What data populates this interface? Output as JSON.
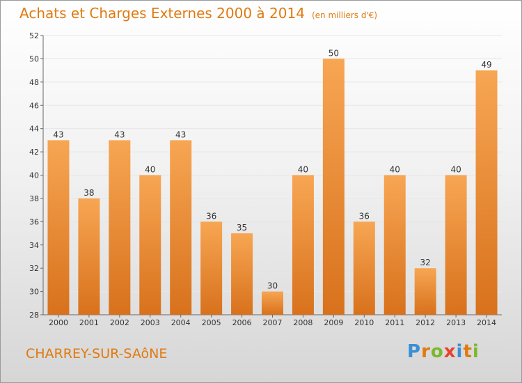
{
  "header": {
    "title": "Achats et Charges Externes 2000 à 2014",
    "unit": "(en milliers d'€)"
  },
  "footer": {
    "commune": "CHARREY-SUR-SAôNE",
    "logo_letters": [
      "P",
      "r",
      "o",
      "x",
      "i",
      "t",
      "i"
    ],
    "logo_colors": [
      "#3a8fd6",
      "#e07a10",
      "#7cb82f",
      "#e8432e",
      "#3a8fd6",
      "#e07a10",
      "#7cb82f"
    ]
  },
  "colors": {
    "bar_light": "#f7a653",
    "bar_dark": "#d8711c",
    "grid": "#e6e6e6",
    "accent": "#e07a10"
  },
  "chart_data": {
    "type": "bar",
    "categories": [
      "2000",
      "2001",
      "2002",
      "2003",
      "2004",
      "2005",
      "2006",
      "2007",
      "2008",
      "2009",
      "2010",
      "2011",
      "2012",
      "2013",
      "2014"
    ],
    "values": [
      43,
      38,
      43,
      40,
      43,
      36,
      35,
      30,
      40,
      50,
      36,
      40,
      32,
      40,
      49
    ],
    "title": "Achats et Charges Externes 2000 à 2014",
    "xlabel": "",
    "ylabel": "",
    "ylim": [
      28,
      52
    ],
    "yticks": [
      28,
      30,
      32,
      34,
      36,
      38,
      40,
      42,
      44,
      46,
      48,
      50,
      52
    ],
    "grid": true,
    "legend": "none"
  }
}
